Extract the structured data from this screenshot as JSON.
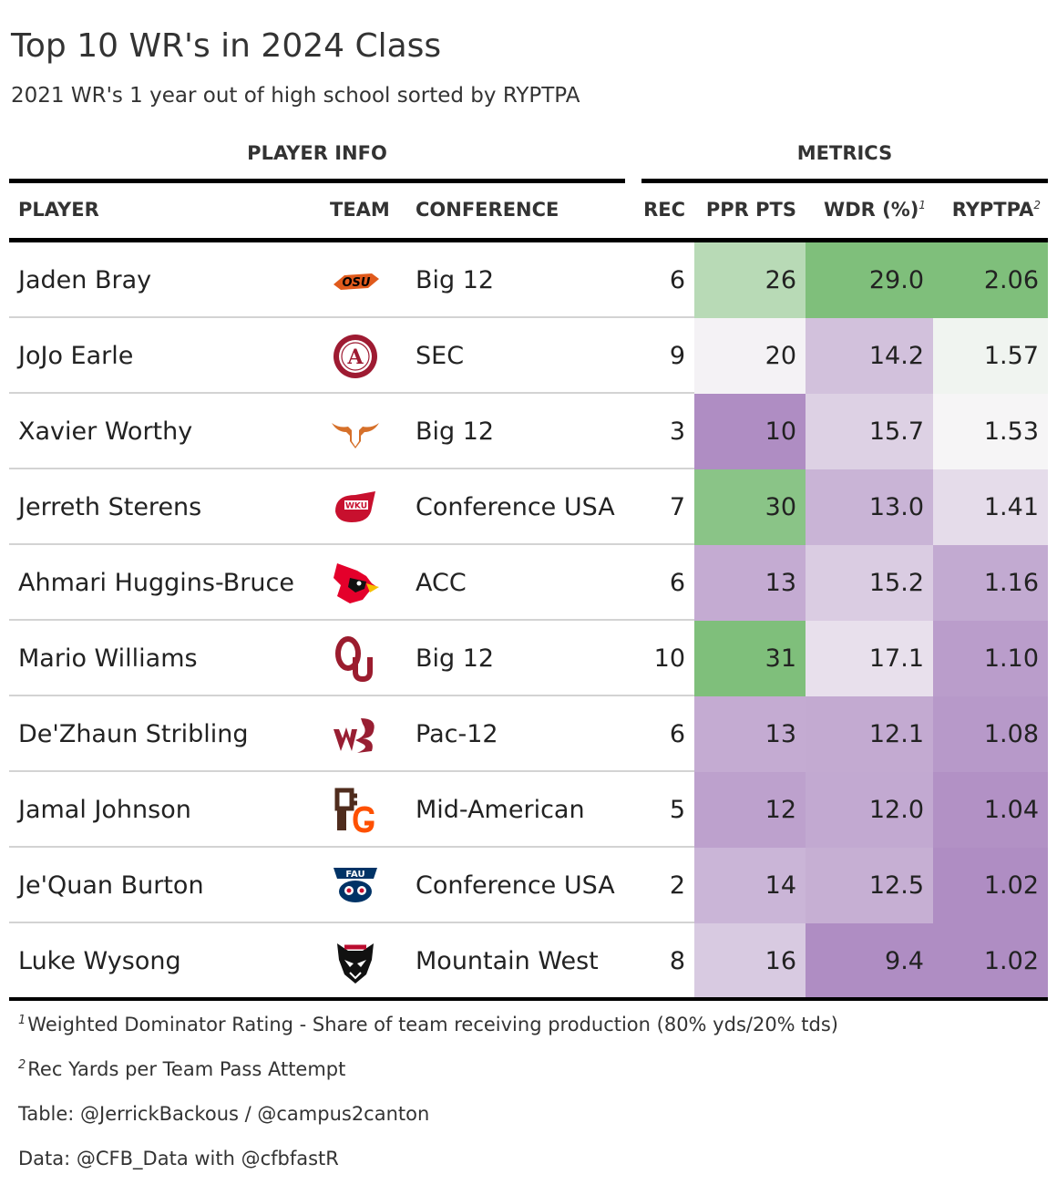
{
  "title": "Top 10 WR's in 2024 Class",
  "subtitle": "2021 WR's 1 year out of high school sorted by RYPTPA",
  "spanners": {
    "player_info": "PLAYER INFO",
    "metrics": "METRICS"
  },
  "columns": {
    "player": "PLAYER",
    "team": "TEAM",
    "conference": "CONFERENCE",
    "rec": "REC",
    "ppr": "PPR PTS",
    "wdr": "WDR (%)",
    "wdr_note": "1",
    "ryptpa": "RYPTPA",
    "ryptpa_note": "2"
  },
  "colors": {
    "high_green": "#7fbf7b",
    "mid_light": "#f7f7f7",
    "low_purple": "#af8dc3"
  },
  "chart_data": {
    "type": "table",
    "title": "Top 10 WR's in 2024 Class",
    "columns": [
      "PLAYER",
      "TEAM",
      "CONFERENCE",
      "REC",
      "PPR PTS",
      "WDR (%)",
      "RYPTPA"
    ],
    "rows": [
      {
        "player": "Jaden Bray",
        "team_logo": "oklahoma-state-logo",
        "conference": "Big 12",
        "rec": "6",
        "ppr": "26",
        "wdr": "29.0",
        "ryptpa": "2.06"
      },
      {
        "player": "JoJo Earle",
        "team_logo": "alabama-logo",
        "conference": "SEC",
        "rec": "9",
        "ppr": "20",
        "wdr": "14.2",
        "ryptpa": "1.57"
      },
      {
        "player": "Xavier Worthy",
        "team_logo": "texas-logo",
        "conference": "Big 12",
        "rec": "3",
        "ppr": "10",
        "wdr": "15.7",
        "ryptpa": "1.53"
      },
      {
        "player": "Jerreth Sterens",
        "team_logo": "western-kentucky-logo",
        "conference": "Conference USA",
        "rec": "7",
        "ppr": "30",
        "wdr": "13.0",
        "ryptpa": "1.41"
      },
      {
        "player": "Ahmari Huggins-Bruce",
        "team_logo": "louisville-logo",
        "conference": "ACC",
        "rec": "6",
        "ppr": "13",
        "wdr": "15.2",
        "ryptpa": "1.16"
      },
      {
        "player": "Mario Williams",
        "team_logo": "oklahoma-logo",
        "conference": "Big 12",
        "rec": "10",
        "ppr": "31",
        "wdr": "17.1",
        "ryptpa": "1.10"
      },
      {
        "player": "De'Zhaun Stribling",
        "team_logo": "washington-state-logo",
        "conference": "Pac-12",
        "rec": "6",
        "ppr": "13",
        "wdr": "12.1",
        "ryptpa": "1.08"
      },
      {
        "player": "Jamal Johnson",
        "team_logo": "bowling-green-logo",
        "conference": "Mid-American",
        "rec": "5",
        "ppr": "12",
        "wdr": "12.0",
        "ryptpa": "1.04"
      },
      {
        "player": "Je'Quan Burton",
        "team_logo": "florida-atlantic-logo",
        "conference": "Conference USA",
        "rec": "2",
        "ppr": "14",
        "wdr": "12.5",
        "ryptpa": "1.02"
      },
      {
        "player": "Luke Wysong",
        "team_logo": "new-mexico-logo",
        "conference": "Mountain West",
        "rec": "8",
        "ppr": "16",
        "wdr": "9.4",
        "ryptpa": "1.02"
      }
    ]
  },
  "footnotes": [
    {
      "mark": "1",
      "text": "Weighted Dominator Rating - Share of team receiving production (80% yds/20% tds)"
    },
    {
      "mark": "2",
      "text": "Rec Yards per Team Pass Attempt"
    }
  ],
  "source_notes": [
    "Table: @JerrickBackous / @campus2canton",
    "Data: @CFB_Data with @cfbfastR"
  ]
}
